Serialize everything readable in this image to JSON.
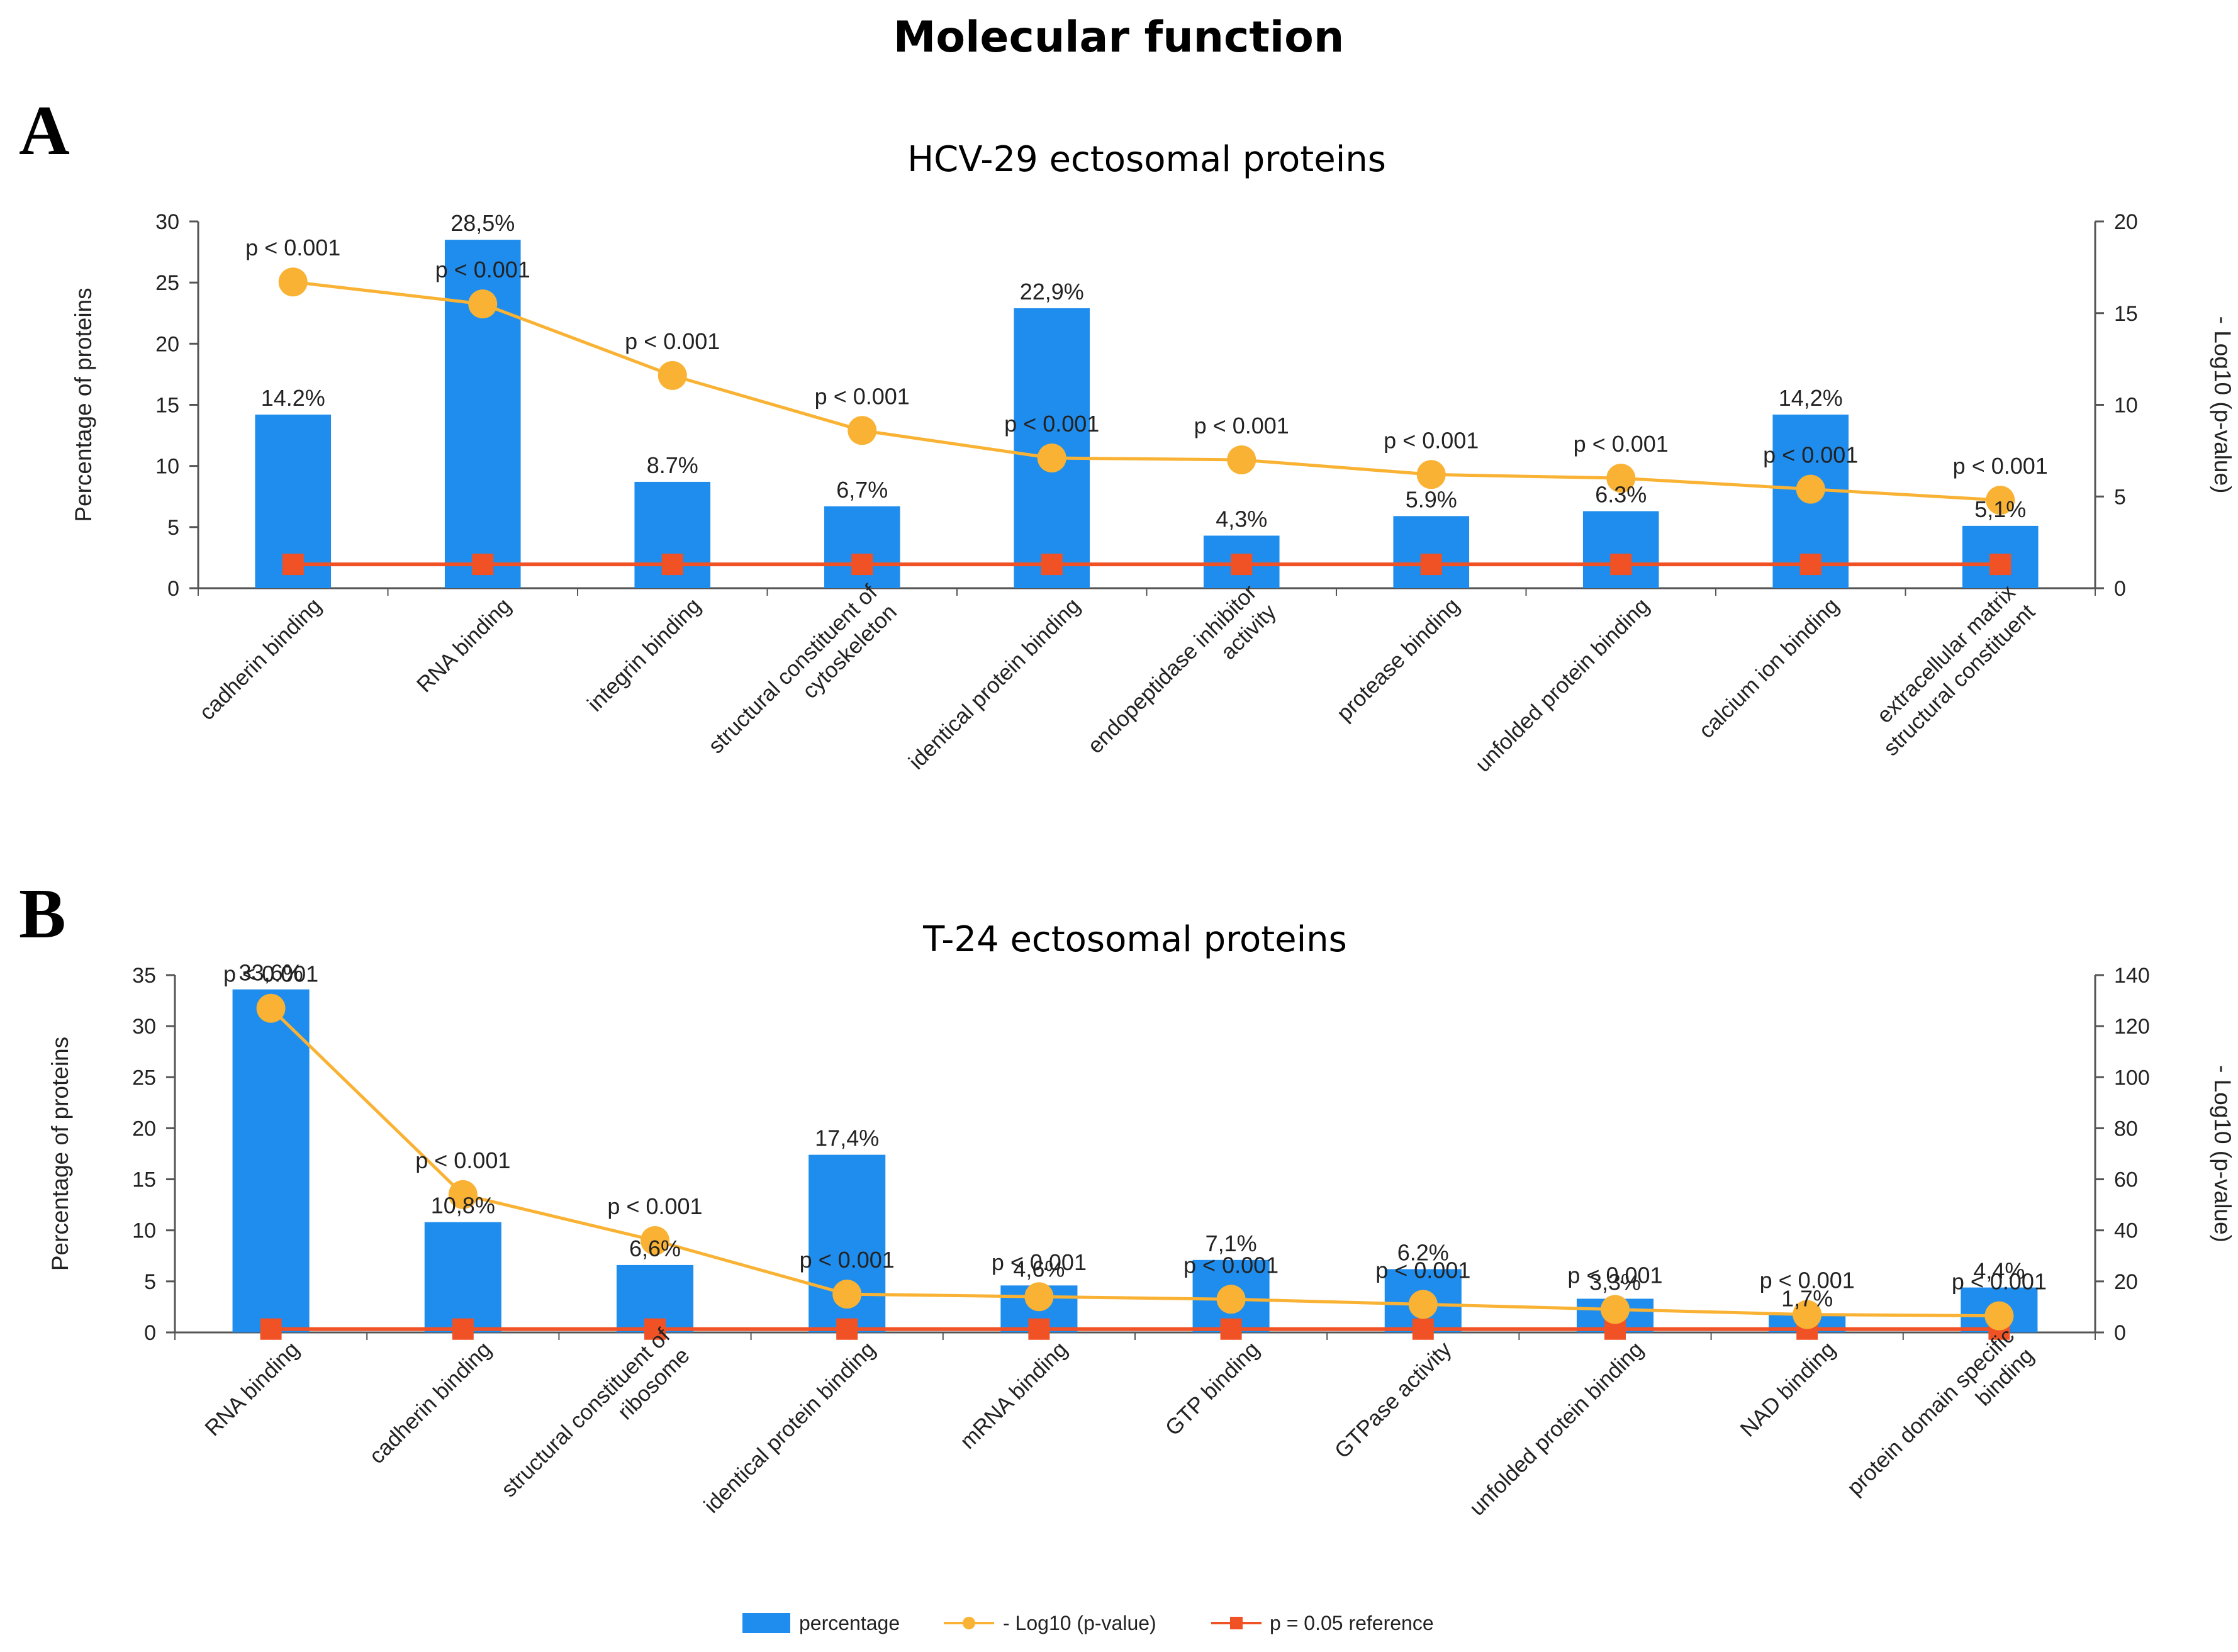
{
  "figure": {
    "title": "Molecular function",
    "colors": {
      "bar": "#1f8ded",
      "line": "#f9b233",
      "reference": "#f05225",
      "axis": "#555555"
    }
  },
  "chart_data": [
    {
      "panel": "A",
      "type": "bar",
      "title": "HCV-29 ectosomal proteins",
      "categories": [
        [
          "cadherin binding"
        ],
        [
          "RNA binding"
        ],
        [
          "integrin binding"
        ],
        [
          "structural constituent of",
          "cytoskeleton"
        ],
        [
          "identical protein binding"
        ],
        [
          "endopeptidase inhibitor",
          "activity"
        ],
        [
          "protease binding"
        ],
        [
          "unfolded protein binding"
        ],
        [
          "calcium ion binding"
        ],
        [
          "extracellular matrix",
          "structural constituent"
        ]
      ],
      "ylabel": "Percentage of proteins",
      "y2label": "- Log10 (p-value)",
      "ylim": [
        0,
        30
      ],
      "yticks": [
        0,
        5,
        10,
        15,
        20,
        25,
        30
      ],
      "y2lim": [
        0,
        20
      ],
      "y2ticks": [
        0,
        5,
        10,
        15,
        20
      ],
      "series": [
        {
          "name": "percentage",
          "type": "bar",
          "axis": "left",
          "values": [
            14.2,
            28.5,
            8.7,
            6.7,
            22.9,
            4.3,
            5.9,
            6.3,
            14.2,
            5.1
          ],
          "labels": [
            "14.2%",
            "28,5%",
            "8.7%",
            "6,7%",
            "22,9%",
            "4,3%",
            "5.9%",
            "6.3%",
            "14,2%",
            "5,1%"
          ]
        },
        {
          "name": "- Log10 (p-value)",
          "type": "line",
          "axis": "right",
          "values": [
            16.7,
            15.5,
            11.6,
            8.6,
            7.1,
            7.0,
            6.2,
            6.0,
            5.4,
            4.8
          ],
          "labels": [
            "p < 0.001",
            "p < 0.001",
            "p < 0.001",
            "p < 0.001",
            "p < 0.001",
            "p < 0.001",
            "p < 0.001",
            "p < 0.001",
            "p < 0.001",
            "p < 0.001"
          ]
        },
        {
          "name": "p = 0.05 reference",
          "type": "line",
          "axis": "right",
          "values": [
            1.3,
            1.3,
            1.3,
            1.3,
            1.3,
            1.3,
            1.3,
            1.3,
            1.3,
            1.3
          ]
        }
      ]
    },
    {
      "panel": "B",
      "type": "bar",
      "title": "T-24 ectosomal proteins",
      "categories": [
        [
          "RNA binding"
        ],
        [
          "cadherin binding"
        ],
        [
          "structural constituent of",
          "ribosome"
        ],
        [
          "identical protein binding"
        ],
        [
          "mRNA binding"
        ],
        [
          "GTP binding"
        ],
        [
          "GTPase activity"
        ],
        [
          "unfolded protein binding"
        ],
        [
          "NAD binding"
        ],
        [
          "protein domain specific",
          "binding"
        ]
      ],
      "ylabel": "Percentage of proteins",
      "y2label": "- Log10 (p-value)",
      "ylim": [
        0,
        35
      ],
      "yticks": [
        0,
        5,
        10,
        15,
        20,
        25,
        30,
        35
      ],
      "y2lim": [
        0,
        140
      ],
      "y2ticks": [
        0,
        20,
        40,
        60,
        80,
        100,
        120,
        140
      ],
      "series": [
        {
          "name": "percentage",
          "type": "bar",
          "axis": "left",
          "values": [
            33.6,
            10.8,
            6.6,
            17.4,
            4.6,
            7.1,
            6.2,
            3.3,
            1.7,
            4.4
          ],
          "labels": [
            "33,6%",
            "10,8%",
            "6,6%",
            "17,4%",
            "4,6%",
            "7,1%",
            "6.2%",
            "3,3%",
            "1,7%",
            "4,4%"
          ]
        },
        {
          "name": "- Log10 (p-value)",
          "type": "line",
          "axis": "right",
          "values": [
            127,
            54,
            36,
            15,
            14,
            13,
            11,
            9,
            7,
            6.5
          ],
          "labels": [
            "p < 0.001",
            "p < 0.001",
            "p < 0.001",
            "p < 0.001",
            "p < 0.001",
            "p < 0.001",
            "p < 0.001",
            "p < 0.001",
            "p < 0.001",
            "p < 0.001"
          ]
        },
        {
          "name": "p = 0.05 reference",
          "type": "line",
          "axis": "right",
          "values": [
            1.3,
            1.3,
            1.3,
            1.3,
            1.3,
            1.3,
            1.3,
            1.3,
            1.3,
            1.3
          ]
        }
      ]
    }
  ],
  "legend": {
    "items": [
      {
        "key": "bar",
        "label": "percentage"
      },
      {
        "key": "line",
        "label": "- Log10 (p-value)"
      },
      {
        "key": "reference",
        "label": "p = 0.05 reference"
      }
    ]
  }
}
